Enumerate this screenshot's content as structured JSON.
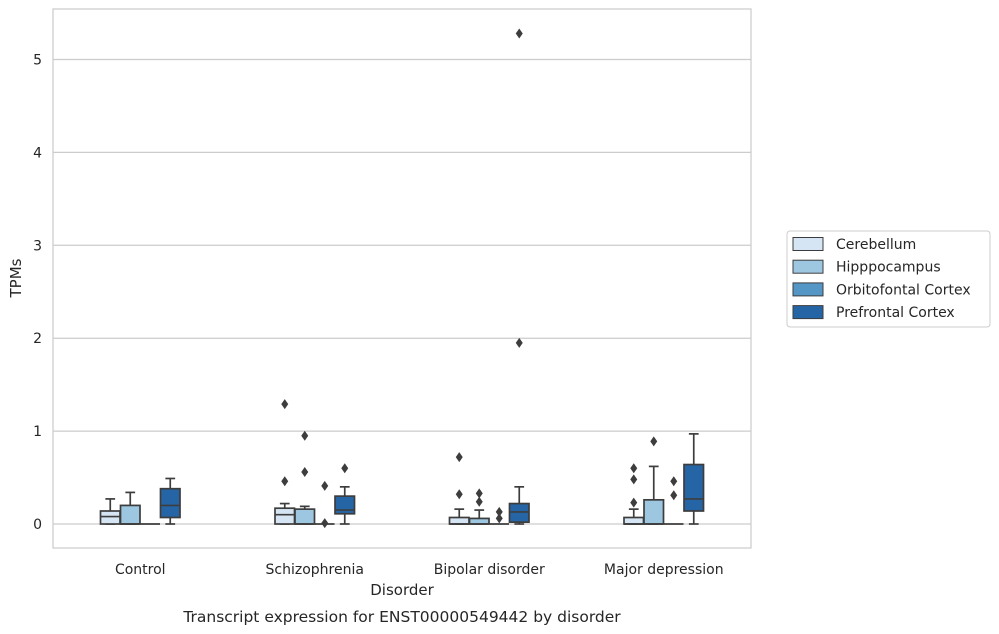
{
  "chart_data": {
    "type": "box",
    "xlabel": "Disorder",
    "ylabel": "TPMs",
    "caption": "Transcript expression for ENST00000549442 by disorder",
    "ylim": [
      -0.25,
      5.5
    ],
    "yticks": [
      0,
      1,
      2,
      3,
      4,
      5
    ],
    "grid": "horizontal",
    "legend_position": "right",
    "categories": [
      "Control",
      "Schizophrenia",
      "Bipolar disorder",
      "Major depression"
    ],
    "series": [
      {
        "name": "Cerebellum",
        "color": "#d6e5f3"
      },
      {
        "name": "Hipppocampus",
        "color": "#9dc7e1"
      },
      {
        "name": "Orbitofontal Cortex",
        "color": "#5497c6"
      },
      {
        "name": "Prefrontal Cortex",
        "color": "#2565a5"
      }
    ],
    "boxes": [
      [
        {
          "min": 0,
          "q1": 0,
          "median": 0.08,
          "q3": 0.14,
          "max": 0.27,
          "outliers": []
        },
        {
          "min": 0,
          "q1": 0,
          "median": 0,
          "q3": 0.2,
          "max": 0.34,
          "outliers": []
        },
        {
          "min": 0,
          "q1": 0,
          "median": 0,
          "q3": 0,
          "max": 0,
          "outliers": []
        },
        {
          "min": 0,
          "q1": 0.07,
          "median": 0.2,
          "q3": 0.38,
          "max": 0.49,
          "outliers": []
        }
      ],
      [
        {
          "min": 0,
          "q1": 0,
          "median": 0.1,
          "q3": 0.17,
          "max": 0.22,
          "outliers": [
            0.46,
            1.29
          ]
        },
        {
          "min": 0,
          "q1": 0,
          "median": 0,
          "q3": 0.16,
          "max": 0.19,
          "outliers": [
            0.56,
            0.95
          ]
        },
        {
          "min": 0,
          "q1": 0,
          "median": 0,
          "q3": 0,
          "max": 0,
          "outliers": [
            0.01,
            0.41
          ]
        },
        {
          "min": 0,
          "q1": 0.11,
          "median": 0.15,
          "q3": 0.3,
          "max": 0.4,
          "outliers": [
            0.6
          ]
        }
      ],
      [
        {
          "min": 0,
          "q1": 0,
          "median": 0,
          "q3": 0.07,
          "max": 0.16,
          "outliers": [
            0.32,
            0.72
          ]
        },
        {
          "min": 0,
          "q1": 0,
          "median": 0,
          "q3": 0.06,
          "max": 0.15,
          "outliers": [
            0.24,
            0.33
          ]
        },
        {
          "min": 0,
          "q1": 0,
          "median": 0,
          "q3": 0,
          "max": 0,
          "outliers": [
            0.06,
            0.13
          ]
        },
        {
          "min": 0,
          "q1": 0.02,
          "median": 0.13,
          "q3": 0.22,
          "max": 0.4,
          "outliers": [
            1.95,
            5.28
          ]
        }
      ],
      [
        {
          "min": 0,
          "q1": 0,
          "median": 0,
          "q3": 0.07,
          "max": 0.16,
          "outliers": [
            0.23,
            0.48,
            0.6
          ]
        },
        {
          "min": 0,
          "q1": 0,
          "median": 0,
          "q3": 0.26,
          "max": 0.62,
          "outliers": [
            0.89
          ]
        },
        {
          "min": 0,
          "q1": 0,
          "median": 0,
          "q3": 0,
          "max": 0,
          "outliers": [
            0.31,
            0.46
          ]
        },
        {
          "min": 0,
          "q1": 0.14,
          "median": 0.27,
          "q3": 0.64,
          "max": 0.97,
          "outliers": []
        }
      ]
    ]
  }
}
